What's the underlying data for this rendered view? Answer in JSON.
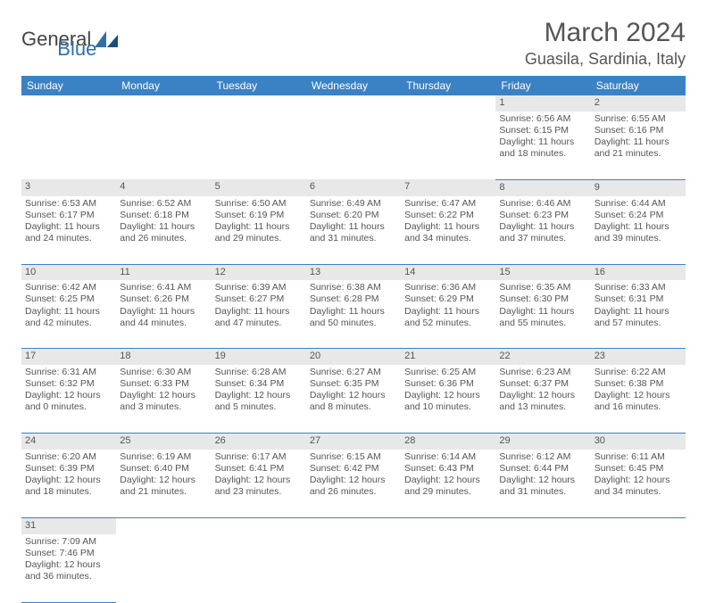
{
  "brand": {
    "name1": "General",
    "name2": "Blue"
  },
  "title": {
    "month_year": "March 2024",
    "location": "Guasila, Sardinia, Italy"
  },
  "colors": {
    "header_bg": "#3b82c4",
    "header_fg": "#ffffff",
    "daynum_bg": "#e8e8e8",
    "text": "#555555",
    "row_border": "#3b82c4"
  },
  "weekdays": [
    "Sunday",
    "Monday",
    "Tuesday",
    "Wednesday",
    "Thursday",
    "Friday",
    "Saturday"
  ],
  "weeks": [
    [
      null,
      null,
      null,
      null,
      null,
      {
        "n": "1",
        "sr": "6:56 AM",
        "ss": "6:15 PM",
        "dl": "11 hours and 18 minutes."
      },
      {
        "n": "2",
        "sr": "6:55 AM",
        "ss": "6:16 PM",
        "dl": "11 hours and 21 minutes."
      }
    ],
    [
      {
        "n": "3",
        "sr": "6:53 AM",
        "ss": "6:17 PM",
        "dl": "11 hours and 24 minutes."
      },
      {
        "n": "4",
        "sr": "6:52 AM",
        "ss": "6:18 PM",
        "dl": "11 hours and 26 minutes."
      },
      {
        "n": "5",
        "sr": "6:50 AM",
        "ss": "6:19 PM",
        "dl": "11 hours and 29 minutes."
      },
      {
        "n": "6",
        "sr": "6:49 AM",
        "ss": "6:20 PM",
        "dl": "11 hours and 31 minutes."
      },
      {
        "n": "7",
        "sr": "6:47 AM",
        "ss": "6:22 PM",
        "dl": "11 hours and 34 minutes."
      },
      {
        "n": "8",
        "sr": "6:46 AM",
        "ss": "6:23 PM",
        "dl": "11 hours and 37 minutes."
      },
      {
        "n": "9",
        "sr": "6:44 AM",
        "ss": "6:24 PM",
        "dl": "11 hours and 39 minutes."
      }
    ],
    [
      {
        "n": "10",
        "sr": "6:42 AM",
        "ss": "6:25 PM",
        "dl": "11 hours and 42 minutes."
      },
      {
        "n": "11",
        "sr": "6:41 AM",
        "ss": "6:26 PM",
        "dl": "11 hours and 44 minutes."
      },
      {
        "n": "12",
        "sr": "6:39 AM",
        "ss": "6:27 PM",
        "dl": "11 hours and 47 minutes."
      },
      {
        "n": "13",
        "sr": "6:38 AM",
        "ss": "6:28 PM",
        "dl": "11 hours and 50 minutes."
      },
      {
        "n": "14",
        "sr": "6:36 AM",
        "ss": "6:29 PM",
        "dl": "11 hours and 52 minutes."
      },
      {
        "n": "15",
        "sr": "6:35 AM",
        "ss": "6:30 PM",
        "dl": "11 hours and 55 minutes."
      },
      {
        "n": "16",
        "sr": "6:33 AM",
        "ss": "6:31 PM",
        "dl": "11 hours and 57 minutes."
      }
    ],
    [
      {
        "n": "17",
        "sr": "6:31 AM",
        "ss": "6:32 PM",
        "dl": "12 hours and 0 minutes."
      },
      {
        "n": "18",
        "sr": "6:30 AM",
        "ss": "6:33 PM",
        "dl": "12 hours and 3 minutes."
      },
      {
        "n": "19",
        "sr": "6:28 AM",
        "ss": "6:34 PM",
        "dl": "12 hours and 5 minutes."
      },
      {
        "n": "20",
        "sr": "6:27 AM",
        "ss": "6:35 PM",
        "dl": "12 hours and 8 minutes."
      },
      {
        "n": "21",
        "sr": "6:25 AM",
        "ss": "6:36 PM",
        "dl": "12 hours and 10 minutes."
      },
      {
        "n": "22",
        "sr": "6:23 AM",
        "ss": "6:37 PM",
        "dl": "12 hours and 13 minutes."
      },
      {
        "n": "23",
        "sr": "6:22 AM",
        "ss": "6:38 PM",
        "dl": "12 hours and 16 minutes."
      }
    ],
    [
      {
        "n": "24",
        "sr": "6:20 AM",
        "ss": "6:39 PM",
        "dl": "12 hours and 18 minutes."
      },
      {
        "n": "25",
        "sr": "6:19 AM",
        "ss": "6:40 PM",
        "dl": "12 hours and 21 minutes."
      },
      {
        "n": "26",
        "sr": "6:17 AM",
        "ss": "6:41 PM",
        "dl": "12 hours and 23 minutes."
      },
      {
        "n": "27",
        "sr": "6:15 AM",
        "ss": "6:42 PM",
        "dl": "12 hours and 26 minutes."
      },
      {
        "n": "28",
        "sr": "6:14 AM",
        "ss": "6:43 PM",
        "dl": "12 hours and 29 minutes."
      },
      {
        "n": "29",
        "sr": "6:12 AM",
        "ss": "6:44 PM",
        "dl": "12 hours and 31 minutes."
      },
      {
        "n": "30",
        "sr": "6:11 AM",
        "ss": "6:45 PM",
        "dl": "12 hours and 34 minutes."
      }
    ],
    [
      {
        "n": "31",
        "sr": "7:09 AM",
        "ss": "7:46 PM",
        "dl": "12 hours and 36 minutes."
      },
      null,
      null,
      null,
      null,
      null,
      null
    ]
  ],
  "labels": {
    "sunrise": "Sunrise: ",
    "sunset": "Sunset: ",
    "daylight": "Daylight: "
  }
}
